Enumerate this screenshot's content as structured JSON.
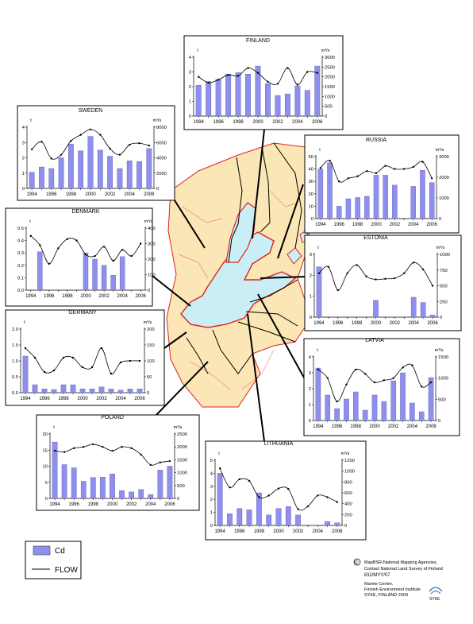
{
  "legend": {
    "bar_label": "Cd",
    "line_label": "FLOW",
    "bar_color": "#8f90ee",
    "line_color": "#000000"
  },
  "footer": {
    "copyright_symbol": "©",
    "lines": [
      "MapBSR-National Mapping Agencies,",
      "Contact National Land Survey of Finland",
      "811/MYY/07",
      "Marine Centre,",
      "Finnish Environment Institute",
      "SYKE, FINLAND 2009"
    ],
    "logo_text": "SYKE"
  },
  "colors": {
    "sea": "#c9eef5",
    "land": "#fbe6b6",
    "coast": "#e02020",
    "bars": "#8f90ee",
    "frame": "#000000"
  },
  "chart_data": [
    {
      "type": "bar",
      "title": "FINLAND",
      "left_unit": "t",
      "right_unit": "m³/s",
      "years": [
        1994,
        1995,
        1996,
        1997,
        1998,
        1999,
        2000,
        2001,
        2002,
        2003,
        2004,
        2005,
        2006
      ],
      "x_ticks": [
        "1994",
        "1996",
        "1998",
        "2000",
        "2002",
        "2004",
        "2006"
      ],
      "ylim": [
        0,
        4
      ],
      "y_ticks": [
        "0",
        "1",
        "2",
        "3",
        "4"
      ],
      "y2lim": [
        0,
        3000
      ],
      "y2_ticks": [
        "0",
        "500",
        "1000",
        "1500",
        "2000",
        "2500",
        "3000"
      ],
      "cd": [
        2.1,
        2.35,
        2.5,
        2.85,
        2.95,
        2.85,
        3.4,
        2.2,
        1.4,
        1.5,
        2.05,
        1.75,
        3.4
      ],
      "flow": [
        2000,
        1700,
        1850,
        2100,
        2050,
        2450,
        2200,
        1750,
        1650,
        2450,
        1600,
        2250,
        2200
      ]
    },
    {
      "type": "bar",
      "title": "SWEDEN",
      "left_unit": "t",
      "right_unit": "m³/s",
      "years": [
        1994,
        1995,
        1996,
        1997,
        1998,
        1999,
        2000,
        2001,
        2002,
        2003,
        2004,
        2005,
        2006
      ],
      "x_ticks": [
        "1994",
        "1996",
        "1998",
        "2000",
        "2002",
        "2004",
        "2006"
      ],
      "ylim": [
        0,
        4
      ],
      "y_ticks": [
        "0",
        "1",
        "2",
        "3",
        "4"
      ],
      "y2lim": [
        0,
        8000
      ],
      "y2_ticks": [
        "0",
        "2000",
        "4000",
        "6000",
        "8000"
      ],
      "cd": [
        1.05,
        1.4,
        1.3,
        2.0,
        2.9,
        2.45,
        3.4,
        2.5,
        2.1,
        1.3,
        1.8,
        1.75,
        2.6
      ],
      "flow": [
        5100,
        6100,
        3900,
        4400,
        6200,
        7000,
        7700,
        7000,
        5200,
        4400,
        5700,
        5900,
        5600
      ]
    },
    {
      "type": "bar",
      "title": "RUSSIA",
      "left_unit": "t",
      "right_unit": "m³/s",
      "years": [
        1994,
        1995,
        1996,
        1997,
        1998,
        1999,
        2000,
        2001,
        2002,
        2003,
        2004,
        2005,
        2006
      ],
      "x_ticks": [
        "1994",
        "1996",
        "1998",
        "2000",
        "2002",
        "2004",
        "2006"
      ],
      "ylim": [
        0,
        50
      ],
      "y_ticks": [
        "0",
        "10",
        "20",
        "30",
        "40",
        "50"
      ],
      "y2lim": [
        0,
        3000
      ],
      "y2_ticks": [
        "0",
        "1000",
        "2000",
        "3000"
      ],
      "cd": [
        40,
        45,
        10,
        16,
        17,
        18,
        35,
        35,
        27,
        0,
        26,
        39,
        29
      ],
      "flow": [
        2450,
        2800,
        1800,
        1950,
        2050,
        2300,
        2200,
        2550,
        2400,
        2400,
        2500,
        2750,
        1950
      ]
    },
    {
      "type": "bar",
      "title": "DENMARK",
      "left_unit": "t",
      "right_unit": "m³/s",
      "years": [
        1994,
        1995,
        1996,
        1997,
        1998,
        1999,
        2000,
        2001,
        2002,
        2003,
        2004,
        2005,
        2006
      ],
      "x_ticks": [
        "1994",
        "1996",
        "1998",
        "2000",
        "2002",
        "2004",
        "2006"
      ],
      "ylim": [
        0,
        0.5
      ],
      "y_ticks": [
        "0.0",
        "0.1",
        "0.2",
        "0.3",
        "0.4",
        "0.5"
      ],
      "y2lim": [
        0,
        400
      ],
      "y2_ticks": [
        "0",
        "100",
        "200",
        "300",
        "400"
      ],
      "cd": [
        0,
        0.31,
        0,
        0,
        0,
        0,
        0.3,
        0.25,
        0.2,
        0.12,
        0.27,
        0,
        0
      ],
      "flow": [
        350,
        290,
        170,
        270,
        330,
        320,
        230,
        220,
        280,
        190,
        260,
        220,
        300
      ]
    },
    {
      "type": "bar",
      "title": "ESTONIA",
      "left_unit": "t",
      "right_unit": "m³/s",
      "years": [
        1994,
        1995,
        1996,
        1997,
        1998,
        1999,
        2000,
        2001,
        2002,
        2003,
        2004,
        2005,
        2006
      ],
      "x_ticks": [
        "1994",
        "1996",
        "1998",
        "2000",
        "2002",
        "2004",
        "2006"
      ],
      "ylim": [
        0,
        3
      ],
      "y_ticks": [
        "0",
        "1",
        "2",
        "3"
      ],
      "y2lim": [
        0,
        1000
      ],
      "y2_ticks": [
        "0",
        "250",
        "500",
        "750",
        "1000"
      ],
      "cd": [
        2.4,
        0,
        0,
        0,
        0,
        0,
        0.8,
        0,
        0,
        0,
        0.95,
        0.7,
        0.1
      ],
      "flow": [
        700,
        800,
        430,
        700,
        830,
        650,
        600,
        610,
        620,
        700,
        870,
        760,
        500
      ]
    },
    {
      "type": "bar",
      "title": "GERMANY",
      "left_unit": "t",
      "right_unit": "m³/s",
      "years": [
        1994,
        1995,
        1996,
        1997,
        1998,
        1999,
        2000,
        2001,
        2002,
        2003,
        2004,
        2005,
        2006
      ],
      "x_ticks": [
        "1994",
        "1996",
        "1998",
        "2000",
        "2002",
        "2004",
        "2006"
      ],
      "ylim": [
        0,
        2
      ],
      "y_ticks": [
        "0.0",
        "0.5",
        "1.0",
        "1.5",
        "2.0"
      ],
      "y2lim": [
        0,
        200
      ],
      "y2_ticks": [
        "0",
        "50",
        "100",
        "150",
        "200"
      ],
      "cd": [
        1.15,
        0.25,
        0.12,
        0.1,
        0.25,
        0.25,
        0.12,
        0.12,
        0.18,
        0.12,
        0.08,
        0.12,
        0.12
      ],
      "flow": [
        140,
        110,
        65,
        70,
        110,
        110,
        80,
        80,
        140,
        60,
        95,
        100,
        100
      ]
    },
    {
      "type": "bar",
      "title": "LATVIA",
      "left_unit": "t",
      "right_unit": "m³/s",
      "years": [
        1994,
        1995,
        1996,
        1997,
        1998,
        1999,
        2000,
        2001,
        2002,
        2003,
        2004,
        2005,
        2006
      ],
      "x_ticks": [
        "1994",
        "1996",
        "1998",
        "2000",
        "2002",
        "2004",
        "2006"
      ],
      "ylim": [
        0,
        4
      ],
      "y_ticks": [
        "0",
        "1",
        "2",
        "3",
        "4"
      ],
      "y2lim": [
        0,
        1500
      ],
      "y2_ticks": [
        "0",
        "500",
        "1000",
        "1500"
      ],
      "cd": [
        3.3,
        1.6,
        0.75,
        1.35,
        1.8,
        0.65,
        1.6,
        1.2,
        2.5,
        3.0,
        1.1,
        0.55,
        2.7
      ],
      "flow": [
        1200,
        1000,
        450,
        850,
        1200,
        1100,
        900,
        950,
        1000,
        1250,
        1300,
        800,
        900
      ]
    },
    {
      "type": "bar",
      "title": "POLAND",
      "left_unit": "t",
      "right_unit": "m³/s",
      "years": [
        1994,
        1995,
        1996,
        1997,
        1998,
        1999,
        2000,
        2001,
        2002,
        2003,
        2004,
        2005,
        2006
      ],
      "x_ticks": [
        "1994",
        "1996",
        "1998",
        "2000",
        "2002",
        "2004",
        "2006"
      ],
      "ylim": [
        0,
        20
      ],
      "y_ticks": [
        "0",
        "5",
        "10",
        "15",
        "20"
      ],
      "y2lim": [
        0,
        2500
      ],
      "y2_ticks": [
        "0",
        "500",
        "1000",
        "1500",
        "2000",
        "2500"
      ],
      "cd": [
        17.5,
        10.5,
        9.5,
        5.3,
        6.5,
        6.6,
        7.6,
        2.4,
        2.0,
        2.8,
        1.2,
        8.8,
        10
      ],
      "flow": [
        1850,
        1800,
        1950,
        2000,
        2100,
        2000,
        1850,
        2000,
        1950,
        1700,
        1300,
        1400,
        1450
      ]
    },
    {
      "type": "bar",
      "title": "LITHUANIA",
      "left_unit": "t",
      "right_unit": "m³/s",
      "years": [
        1994,
        1995,
        1996,
        1997,
        1998,
        1999,
        2000,
        2001,
        2002,
        2003,
        2004,
        2005,
        2006
      ],
      "x_ticks": [
        "1994",
        "1996",
        "1998",
        "2000",
        "2002",
        "2004",
        "2006"
      ],
      "ylim": [
        0,
        5
      ],
      "y_ticks": [
        "0",
        "1",
        "2",
        "3",
        "4",
        "5"
      ],
      "y2lim": [
        0,
        1200
      ],
      "y2_ticks": [
        "0",
        "200",
        "400",
        "600",
        "800",
        "1000",
        "1200"
      ],
      "cd": [
        4.0,
        0.9,
        1.3,
        1.2,
        2.5,
        0.8,
        1.3,
        1.45,
        0.8,
        0,
        0,
        0.3,
        0.2
      ],
      "flow": [
        1050,
        700,
        850,
        820,
        520,
        550,
        680,
        670,
        300,
        350,
        550,
        520,
        430
      ]
    }
  ]
}
